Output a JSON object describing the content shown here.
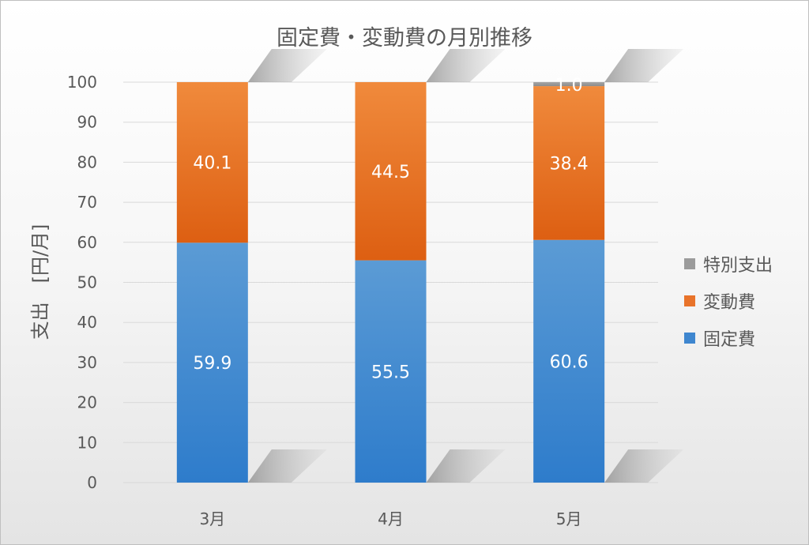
{
  "chart_data": {
    "type": "bar",
    "stacked": true,
    "title": "固定費・変動費の月別推移",
    "xlabel": "",
    "ylabel": "支出　[円/月]",
    "ylim": [
      0,
      100
    ],
    "yticks": [
      0,
      10,
      20,
      30,
      40,
      50,
      60,
      70,
      80,
      90,
      100
    ],
    "categories": [
      "3月",
      "4月",
      "5月"
    ],
    "series": [
      {
        "name": "固定費",
        "values": [
          59.9,
          55.5,
          60.6
        ],
        "labels": [
          "59.9",
          "55.5",
          "60.6"
        ],
        "color": "#3e86cf"
      },
      {
        "name": "変動費",
        "values": [
          40.1,
          44.5,
          38.4
        ],
        "labels": [
          "40.1",
          "44.5",
          "38.4"
        ],
        "color": "#e8732a"
      },
      {
        "name": "特別支出",
        "values": [
          0.0,
          0.0,
          1.0
        ],
        "labels": [
          "0.0",
          "0.0",
          "1.0"
        ],
        "color": "#9b9b9b"
      }
    ],
    "legend_order": [
      "特別支出",
      "変動費",
      "固定費"
    ],
    "legend_position": "right",
    "gridlines": true
  }
}
